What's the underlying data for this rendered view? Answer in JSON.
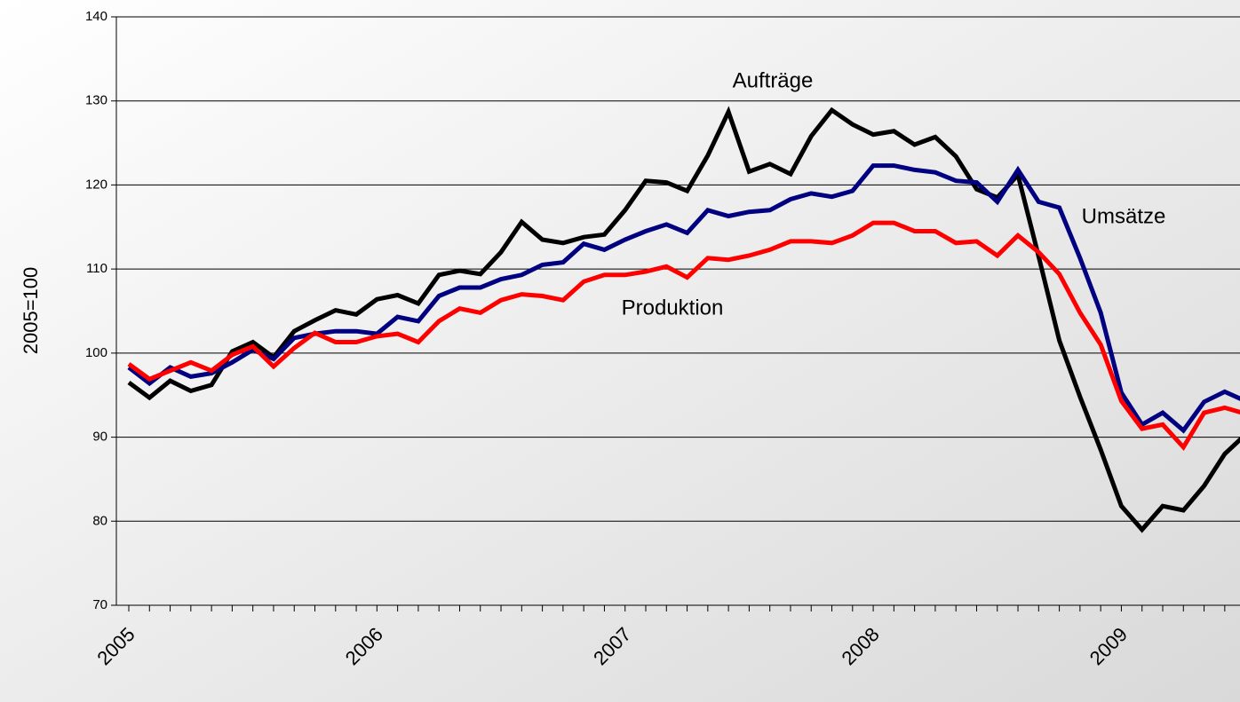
{
  "chart_data": {
    "type": "line",
    "y_label": "2005=100",
    "categories": [
      "2005",
      null,
      null,
      null,
      null,
      null,
      null,
      null,
      null,
      null,
      null,
      null,
      "2006",
      null,
      null,
      null,
      null,
      null,
      null,
      null,
      null,
      null,
      null,
      null,
      "2007",
      null,
      null,
      null,
      null,
      null,
      null,
      null,
      null,
      null,
      null,
      null,
      "2008",
      null,
      null,
      null,
      null,
      null,
      null,
      null,
      null,
      null,
      null,
      null,
      "2009",
      null,
      null,
      null,
      null,
      null,
      null
    ],
    "ylim": [
      70,
      140
    ],
    "yticks": [
      70,
      80,
      90,
      100,
      110,
      120,
      130,
      140
    ],
    "grid": true,
    "series": [
      {
        "name": "Aufträge",
        "color": "#000000",
        "values": [
          96.5,
          94.7,
          96.7,
          95.5,
          96.2,
          100.2,
          101.3,
          99.5,
          102.6,
          103.9,
          105.1,
          104.6,
          106.4,
          106.9,
          105.9,
          109.3,
          109.8,
          109.4,
          112.0,
          115.6,
          113.5,
          113.1,
          113.8,
          114.1,
          117.0,
          120.5,
          120.3,
          119.3,
          123.5,
          128.7,
          121.6,
          122.5,
          121.3,
          125.8,
          128.9,
          127.2,
          126.0,
          126.4,
          124.8,
          125.7,
          123.4,
          119.5,
          118.5,
          121.2,
          111.5,
          101.5,
          94.8,
          88.5,
          81.8,
          79.0,
          81.8,
          81.3,
          84.2,
          88.0,
          90.3
        ]
      },
      {
        "name": "Umsätze",
        "color": "#000080",
        "values": [
          98.3,
          96.4,
          98.3,
          97.2,
          97.6,
          98.9,
          100.4,
          99.3,
          101.8,
          102.3,
          102.6,
          102.6,
          102.3,
          104.3,
          103.8,
          106.8,
          107.8,
          107.8,
          108.8,
          109.3,
          110.5,
          110.8,
          113.0,
          112.3,
          113.5,
          114.5,
          115.3,
          114.3,
          117.0,
          116.3,
          116.8,
          117.0,
          118.3,
          119.0,
          118.6,
          119.3,
          122.3,
          122.3,
          121.8,
          121.5,
          120.5,
          120.3,
          118.0,
          121.8,
          118.0,
          117.3,
          111.3,
          104.8,
          95.3,
          91.5,
          92.9,
          90.8,
          94.2,
          95.4,
          94.3
        ]
      },
      {
        "name": "Produktion",
        "color": "#ff0000",
        "values": [
          98.7,
          96.9,
          97.9,
          98.9,
          97.9,
          99.8,
          100.8,
          98.4,
          100.6,
          102.4,
          101.3,
          101.3,
          102.0,
          102.3,
          101.3,
          103.8,
          105.3,
          104.8,
          106.3,
          107.0,
          106.8,
          106.3,
          108.5,
          109.3,
          109.3,
          109.7,
          110.3,
          109.0,
          111.3,
          111.1,
          111.6,
          112.3,
          113.3,
          113.3,
          113.1,
          114.0,
          115.5,
          115.5,
          114.5,
          114.5,
          113.1,
          113.3,
          111.6,
          114.0,
          112.0,
          109.4,
          104.8,
          101.0,
          94.3,
          91.0,
          91.5,
          88.8,
          92.9,
          93.5,
          92.8
        ]
      }
    ]
  }
}
